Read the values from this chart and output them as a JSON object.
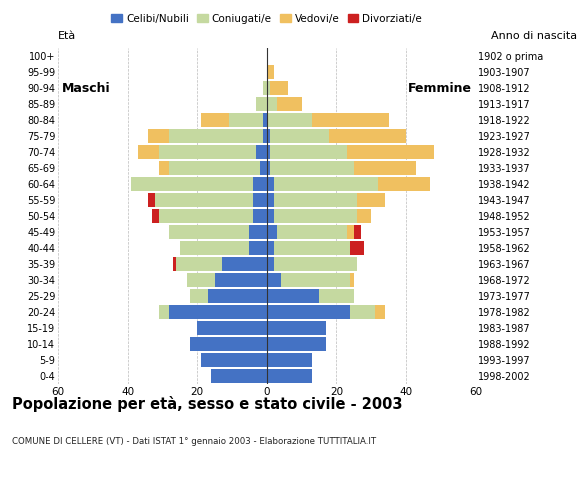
{
  "age_groups": [
    "0-4",
    "5-9",
    "10-14",
    "15-19",
    "20-24",
    "25-29",
    "30-34",
    "35-39",
    "40-44",
    "45-49",
    "50-54",
    "55-59",
    "60-64",
    "65-69",
    "70-74",
    "75-79",
    "80-84",
    "85-89",
    "90-94",
    "95-99",
    "100+"
  ],
  "birth_years": [
    "1998-2002",
    "1993-1997",
    "1988-1992",
    "1983-1987",
    "1978-1982",
    "1973-1977",
    "1968-1972",
    "1963-1967",
    "1958-1962",
    "1953-1957",
    "1948-1952",
    "1943-1947",
    "1938-1942",
    "1933-1937",
    "1928-1932",
    "1923-1927",
    "1918-1922",
    "1913-1917",
    "1908-1912",
    "1903-1907",
    "1902 o prima"
  ],
  "male": {
    "celibi": [
      16,
      19,
      22,
      20,
      28,
      17,
      15,
      13,
      5,
      5,
      4,
      4,
      4,
      2,
      3,
      1,
      1,
      0,
      0,
      0,
      0
    ],
    "coniugati": [
      0,
      0,
      0,
      0,
      3,
      5,
      8,
      13,
      20,
      23,
      27,
      28,
      35,
      26,
      28,
      27,
      10,
      3,
      1,
      0,
      0
    ],
    "vedovi": [
      0,
      0,
      0,
      0,
      0,
      0,
      0,
      0,
      0,
      0,
      0,
      0,
      0,
      3,
      6,
      6,
      8,
      0,
      0,
      0,
      0
    ],
    "divorziati": [
      0,
      0,
      0,
      0,
      0,
      0,
      0,
      1,
      0,
      0,
      2,
      2,
      0,
      0,
      0,
      0,
      0,
      0,
      0,
      0,
      0
    ]
  },
  "female": {
    "nubili": [
      13,
      13,
      17,
      17,
      24,
      15,
      4,
      2,
      2,
      3,
      2,
      2,
      2,
      1,
      1,
      1,
      0,
      0,
      0,
      0,
      0
    ],
    "coniugate": [
      0,
      0,
      0,
      0,
      7,
      10,
      20,
      24,
      22,
      20,
      24,
      24,
      30,
      24,
      22,
      17,
      13,
      3,
      1,
      0,
      0
    ],
    "vedove": [
      0,
      0,
      0,
      0,
      3,
      0,
      1,
      0,
      0,
      2,
      4,
      8,
      15,
      18,
      25,
      22,
      22,
      7,
      5,
      2,
      0
    ],
    "divorziate": [
      0,
      0,
      0,
      0,
      0,
      0,
      0,
      0,
      4,
      2,
      0,
      0,
      0,
      0,
      0,
      0,
      0,
      0,
      0,
      0,
      0
    ]
  },
  "colors": {
    "celibi_nubili": "#4472c4",
    "coniugati": "#c5d9a0",
    "vedovi": "#f0c060",
    "divorziati": "#cc2020"
  },
  "xlim": 60,
  "title": "Popolazione per età, sesso e stato civile - 2003",
  "subtitle": "COMUNE DI CELLERE (VT) - Dati ISTAT 1° gennaio 2003 - Elaborazione TUTTITALIA.IT",
  "xlabel_left": "Maschi",
  "xlabel_right": "Femmine",
  "ylabel_left": "Età",
  "ylabel_right": "Anno di nascita",
  "xticks": [
    -60,
    -40,
    -20,
    0,
    20,
    40,
    60
  ],
  "xtick_labels": [
    "60",
    "40",
    "20",
    "0",
    "20",
    "40",
    "60"
  ],
  "legend_labels": [
    "Celibi/Nubili",
    "Coniugati/e",
    "Vedovi/e",
    "Divorziati/e"
  ],
  "background_color": "#ffffff"
}
